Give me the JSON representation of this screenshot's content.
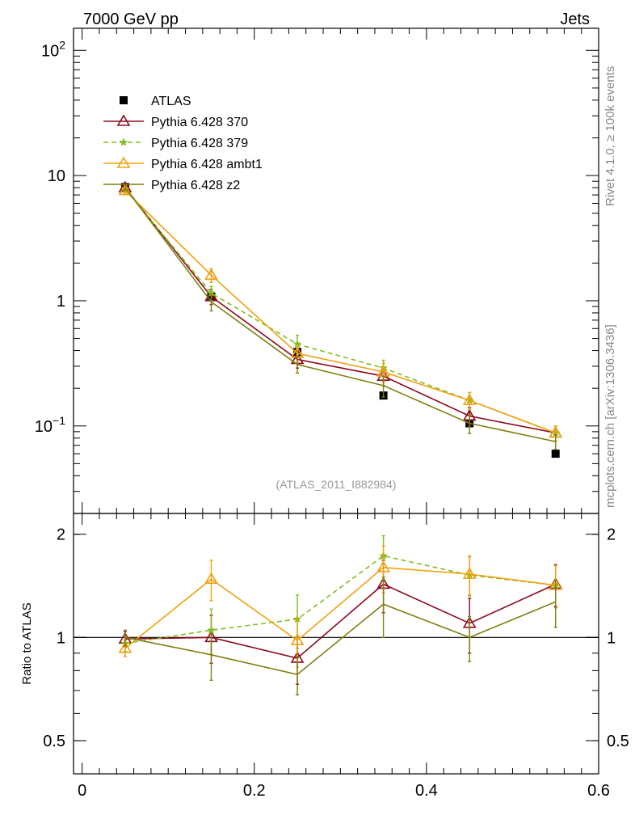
{
  "header": {
    "left": "7000 GeV pp",
    "right": "Jets"
  },
  "side_text": {
    "rivet": "Rivet 4.1.0, ≥ 100k events",
    "mcplots": "mcplots.cern.ch [arXiv:1306.3436]"
  },
  "colors": {
    "atlas": "#000000",
    "p370": "#8b0a1e",
    "p379": "#7fbf20",
    "ambt1": "#f0a010",
    "z2": "#808010"
  },
  "chart_data": [
    {
      "type": "line",
      "scale": "log",
      "watermark": "(ATLAS_2011_I882984)",
      "xlim": [
        -0.01,
        0.6
      ],
      "ylim": [
        0.02,
        150
      ],
      "y_ticks": [
        {
          "value": 0.1,
          "base": "10",
          "exp": "−1"
        },
        {
          "value": 1,
          "label": "1"
        },
        {
          "value": 10,
          "label": "10"
        },
        {
          "value": 100,
          "base": "10",
          "exp": "2"
        }
      ],
      "legend": [
        "ATLAS",
        "Pythia 6.428 370",
        "Pythia 6.428 379",
        "Pythia 6.428 ambt1",
        "Pythia 6.428 z2"
      ],
      "legend_position": "top-left",
      "series": [
        {
          "name": "ATLAS",
          "marker": "square",
          "x": [
            0.05,
            0.15,
            0.25,
            0.35,
            0.45,
            0.55
          ],
          "y": [
            8.1,
            1.08,
            0.39,
            0.175,
            0.105,
            0.06
          ]
        },
        {
          "name": "Pythia 6.428 370",
          "marker": "triangle",
          "x": [
            0.05,
            0.15,
            0.25,
            0.35,
            0.45,
            0.55
          ],
          "y": [
            8.0,
            1.08,
            0.34,
            0.25,
            0.12,
            0.088
          ],
          "err": [
            0.4,
            0.15,
            0.05,
            0.04,
            0.02,
            0.012
          ]
        },
        {
          "name": "Pythia 6.428 379",
          "marker": "star",
          "dashed": true,
          "x": [
            0.05,
            0.15,
            0.25,
            0.35,
            0.45,
            0.55
          ],
          "y": [
            7.8,
            1.15,
            0.45,
            0.29,
            0.16,
            0.088
          ],
          "err": [
            0.4,
            0.15,
            0.08,
            0.045,
            0.025,
            0.012
          ]
        },
        {
          "name": "Pythia 6.428 ambt1",
          "marker": "triangle",
          "x": [
            0.05,
            0.15,
            0.25,
            0.35,
            0.45,
            0.55
          ],
          "y": [
            7.6,
            1.6,
            0.38,
            0.27,
            0.16,
            0.088
          ],
          "err": [
            0.4,
            0.2,
            0.06,
            0.045,
            0.025,
            0.012
          ]
        },
        {
          "name": "Pythia 6.428 z2",
          "marker": "none",
          "x": [
            0.05,
            0.15,
            0.25,
            0.35,
            0.45,
            0.55
          ],
          "y": [
            8.0,
            0.98,
            0.31,
            0.21,
            0.105,
            0.075
          ],
          "err": [
            0.4,
            0.15,
            0.045,
            0.04,
            0.018,
            0.01
          ]
        }
      ]
    },
    {
      "type": "line",
      "scale": "log",
      "ylabel": "Ratio to ATLAS",
      "xlim": [
        -0.01,
        0.6
      ],
      "ylim": [
        0.4,
        2.3
      ],
      "x_ticks": [
        {
          "value": 0,
          "label": "0"
        },
        {
          "value": 0.2,
          "label": "0.2"
        },
        {
          "value": 0.4,
          "label": "0.4"
        },
        {
          "value": 0.6,
          "label": "0.6"
        }
      ],
      "y_ticks": [
        {
          "value": 0.5,
          "label": "0.5"
        },
        {
          "value": 1,
          "label": "1"
        },
        {
          "value": 2,
          "label": "2"
        }
      ],
      "reference_line": 1,
      "series": [
        {
          "name": "Pythia 6.428 370",
          "marker": "triangle",
          "x": [
            0.05,
            0.15,
            0.25,
            0.35,
            0.45,
            0.55
          ],
          "y": [
            0.99,
            1.0,
            0.87,
            1.43,
            1.1,
            1.43
          ],
          "err": [
            0.05,
            0.16,
            0.14,
            0.25,
            0.2,
            0.2
          ]
        },
        {
          "name": "Pythia 6.428 379",
          "marker": "star",
          "dashed": true,
          "x": [
            0.05,
            0.15,
            0.25,
            0.35,
            0.45,
            0.55
          ],
          "y": [
            0.96,
            1.05,
            1.13,
            1.73,
            1.52,
            1.42
          ],
          "err": [
            0.05,
            0.16,
            0.2,
            0.25,
            0.2,
            0.2
          ]
        },
        {
          "name": "Pythia 6.428 ambt1",
          "marker": "triangle",
          "x": [
            0.05,
            0.15,
            0.25,
            0.35,
            0.45,
            0.55
          ],
          "y": [
            0.93,
            1.48,
            0.98,
            1.6,
            1.53,
            1.42
          ],
          "err": [
            0.05,
            0.2,
            0.16,
            0.25,
            0.2,
            0.2
          ]
        },
        {
          "name": "Pythia 6.428 z2",
          "marker": "none",
          "x": [
            0.05,
            0.15,
            0.25,
            0.35,
            0.45,
            0.55
          ],
          "y": [
            1.0,
            0.89,
            0.78,
            1.25,
            1.0,
            1.27
          ],
          "err": [
            0.05,
            0.14,
            0.1,
            0.25,
            0.15,
            0.2
          ]
        }
      ]
    }
  ]
}
